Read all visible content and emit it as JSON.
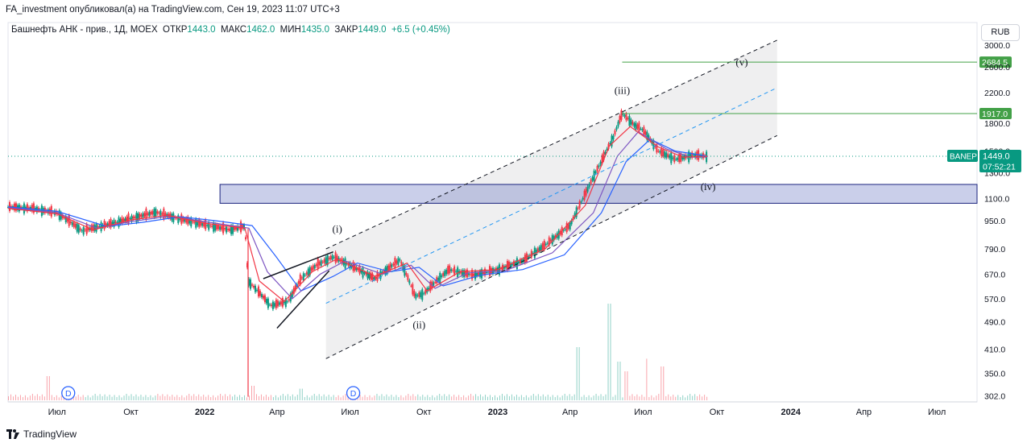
{
  "header": {
    "published": "FA_investment опубликовал(а) на TradingView.com, Сен 19, 2023 11:07 UTC+3"
  },
  "symbol_line": {
    "name": "Башнефть АНК - прив., 1Д, MOEX",
    "open_label": "ОТКР",
    "open": "1443.0",
    "high_label": "МАКС",
    "high": "1462.0",
    "low_label": "МИН",
    "low": "1435.0",
    "close_label": "ЗАКР",
    "close": "1449.0",
    "change": "+6.5 (+0.45%)"
  },
  "currency_button": "RUB",
  "footer": {
    "brand": "TradingView"
  },
  "colors": {
    "up": "#089981",
    "down": "#f23645",
    "ma_fast": "#f23645",
    "ma_mid": "#7e57c2",
    "ma_slow": "#2962ff",
    "channel": "#131722",
    "midline": "#2196f3",
    "level": "#43a047",
    "zone": "#3f51b5"
  },
  "chart_data": {
    "type": "candlestick",
    "symbol": "BANEP",
    "y_scale": "log",
    "ylim": [
      290,
      3300
    ],
    "x_range": [
      "2021-05-01",
      "2024-08-20"
    ],
    "y_ticks": [
      "3000.0",
      "2600.0",
      "2200.0",
      "1800.0",
      "1500.0",
      "1300.0",
      "1100.0",
      "950.0",
      "790.0",
      "670.0",
      "570.0",
      "490.0",
      "410.0",
      "350.0",
      "302.0"
    ],
    "x_ticks": [
      {
        "date": "2021-07-01",
        "label": "Июл"
      },
      {
        "date": "2021-10-01",
        "label": "Окт"
      },
      {
        "date": "2022-01-01",
        "label": "2022"
      },
      {
        "date": "2022-04-01",
        "label": "Апр"
      },
      {
        "date": "2022-07-01",
        "label": "Июл"
      },
      {
        "date": "2022-10-01",
        "label": "Окт"
      },
      {
        "date": "2023-01-01",
        "label": "2023"
      },
      {
        "date": "2023-04-01",
        "label": "Апр"
      },
      {
        "date": "2023-07-01",
        "label": "Июл"
      },
      {
        "date": "2023-10-01",
        "label": "Окт"
      },
      {
        "date": "2024-01-01",
        "label": "2024"
      },
      {
        "date": "2024-04-01",
        "label": "Апр"
      },
      {
        "date": "2024-07-01",
        "label": "Июл"
      }
    ],
    "price_path": [
      [
        "2021-05-01",
        1040
      ],
      [
        "2021-06-01",
        1030
      ],
      [
        "2021-07-01",
        1000
      ],
      [
        "2021-08-01",
        890
      ],
      [
        "2021-09-01",
        925
      ],
      [
        "2021-10-01",
        965
      ],
      [
        "2021-11-01",
        1005
      ],
      [
        "2021-12-01",
        960
      ],
      [
        "2022-01-01",
        925
      ],
      [
        "2022-02-01",
        895
      ],
      [
        "2022-02-20",
        915
      ],
      [
        "2022-02-24",
        640
      ],
      [
        "2022-03-24",
        545
      ],
      [
        "2022-04-15",
        560
      ],
      [
        "2022-05-01",
        650
      ],
      [
        "2022-05-20",
        710
      ],
      [
        "2022-06-10",
        750
      ],
      [
        "2022-07-01",
        710
      ],
      [
        "2022-08-01",
        650
      ],
      [
        "2022-09-01",
        735
      ],
      [
        "2022-09-20",
        580
      ],
      [
        "2022-10-01",
        590
      ],
      [
        "2022-11-01",
        690
      ],
      [
        "2022-12-01",
        665
      ],
      [
        "2023-01-01",
        690
      ],
      [
        "2023-02-01",
        730
      ],
      [
        "2023-03-01",
        810
      ],
      [
        "2023-04-01",
        920
      ],
      [
        "2023-04-20",
        1130
      ],
      [
        "2023-05-10",
        1400
      ],
      [
        "2023-05-25",
        1640
      ],
      [
        "2023-06-05",
        1917
      ],
      [
        "2023-06-20",
        1780
      ],
      [
        "2023-07-01",
        1720
      ],
      [
        "2023-07-20",
        1500
      ],
      [
        "2023-08-10",
        1420
      ],
      [
        "2023-09-01",
        1460
      ],
      [
        "2023-09-19",
        1449
      ]
    ],
    "ma_fast_path": [
      [
        "2021-05-01",
        1030
      ],
      [
        "2021-07-01",
        995
      ],
      [
        "2021-08-15",
        895
      ],
      [
        "2021-10-01",
        955
      ],
      [
        "2021-11-15",
        985
      ],
      [
        "2022-01-01",
        935
      ],
      [
        "2022-02-20",
        905
      ],
      [
        "2022-03-10",
        640
      ],
      [
        "2022-04-10",
        560
      ],
      [
        "2022-05-15",
        680
      ],
      [
        "2022-06-15",
        740
      ],
      [
        "2022-08-01",
        660
      ],
      [
        "2022-09-10",
        720
      ],
      [
        "2022-10-05",
        600
      ],
      [
        "2022-11-15",
        680
      ],
      [
        "2023-01-01",
        690
      ],
      [
        "2023-03-01",
        790
      ],
      [
        "2023-04-20",
        1050
      ],
      [
        "2023-05-20",
        1550
      ],
      [
        "2023-06-15",
        1760
      ],
      [
        "2023-07-20",
        1540
      ],
      [
        "2023-08-20",
        1440
      ],
      [
        "2023-09-19",
        1450
      ]
    ],
    "ma_mid_path": [
      [
        "2021-05-01",
        1035
      ],
      [
        "2021-07-01",
        1000
      ],
      [
        "2021-08-20",
        905
      ],
      [
        "2021-10-01",
        945
      ],
      [
        "2021-11-20",
        980
      ],
      [
        "2022-01-01",
        945
      ],
      [
        "2022-02-25",
        905
      ],
      [
        "2022-03-20",
        680
      ],
      [
        "2022-04-20",
        570
      ],
      [
        "2022-05-25",
        670
      ],
      [
        "2022-06-25",
        730
      ],
      [
        "2022-08-10",
        670
      ],
      [
        "2022-09-15",
        710
      ],
      [
        "2022-10-15",
        610
      ],
      [
        "2022-11-25",
        675
      ],
      [
        "2023-01-10",
        685
      ],
      [
        "2023-03-10",
        770
      ],
      [
        "2023-04-30",
        1000
      ],
      [
        "2023-05-30",
        1450
      ],
      [
        "2023-06-25",
        1700
      ],
      [
        "2023-07-30",
        1520
      ],
      [
        "2023-08-30",
        1440
      ],
      [
        "2023-09-19",
        1445
      ]
    ],
    "ma_slow_path": [
      [
        "2021-05-01",
        1040
      ],
      [
        "2021-07-01",
        1010
      ],
      [
        "2021-09-01",
        915
      ],
      [
        "2021-10-15",
        940
      ],
      [
        "2021-12-01",
        975
      ],
      [
        "2022-01-15",
        950
      ],
      [
        "2022-03-01",
        920
      ],
      [
        "2022-03-31",
        750
      ],
      [
        "2022-05-01",
        600
      ],
      [
        "2022-06-10",
        660
      ],
      [
        "2022-07-10",
        720
      ],
      [
        "2022-08-20",
        680
      ],
      [
        "2022-09-25",
        700
      ],
      [
        "2022-10-25",
        620
      ],
      [
        "2022-12-10",
        665
      ],
      [
        "2023-02-01",
        690
      ],
      [
        "2023-03-25",
        760
      ],
      [
        "2023-05-10",
        1000
      ],
      [
        "2023-06-10",
        1400
      ],
      [
        "2023-07-10",
        1620
      ],
      [
        "2023-08-10",
        1500
      ],
      [
        "2023-09-19",
        1450
      ]
    ],
    "channel": {
      "upper": [
        [
          "2022-06-01",
          790
        ],
        [
          "2023-12-15",
          3100
        ]
      ],
      "lower": [
        [
          "2022-06-01",
          385
        ],
        [
          "2023-12-15",
          1660
        ]
      ],
      "mid": [
        [
          "2022-06-01",
          553
        ],
        [
          "2023-12-15",
          2270
        ]
      ],
      "shade_end": "2023-12-15"
    },
    "wedge_lines": [
      [
        [
          "2022-03-15",
          650
        ],
        [
          "2022-06-10",
          775
        ]
      ],
      [
        [
          "2022-04-01",
          470
        ],
        [
          "2022-06-05",
          685
        ]
      ]
    ],
    "levels": [
      {
        "value": 2684.5,
        "label": "2684.5",
        "from": "2023-06-05"
      },
      {
        "value": 1917.0,
        "label": "1917.0",
        "from": "2023-06-05"
      }
    ],
    "support_zone": {
      "from": "2022-01-20",
      "y": [
        1065,
        1205
      ]
    },
    "current": {
      "symbol": "BANEP",
      "price": "1449.0",
      "timer": "07:52:21",
      "value": 1449
    },
    "wave_labels": [
      {
        "text": "(i)",
        "date": "2022-06-15",
        "value": 880
      },
      {
        "text": "(ii)",
        "date": "2022-09-25",
        "value": 470
      },
      {
        "text": "(iii)",
        "date": "2023-06-05",
        "value": 2180
      },
      {
        "text": "(iv)",
        "date": "2023-09-20",
        "value": 1160
      },
      {
        "text": "(v)",
        "date": "2023-11-01",
        "value": 2620
      }
    ],
    "dividend_markers": [
      {
        "label": "D",
        "date": "2021-07-15"
      },
      {
        "label": "D",
        "date": "2022-07-05"
      }
    ],
    "volume_spikes": [
      {
        "date": "2021-06-20",
        "relative": 0.25
      },
      {
        "date": "2022-03-01",
        "relative": 0.15
      },
      {
        "date": "2022-05-01",
        "relative": 0.12
      },
      {
        "date": "2023-04-10",
        "relative": 0.55
      },
      {
        "date": "2023-05-20",
        "relative": 1.0
      },
      {
        "date": "2023-06-01",
        "relative": 0.4
      },
      {
        "date": "2023-06-10",
        "relative": 0.3
      },
      {
        "date": "2023-07-05",
        "relative": 0.43
      },
      {
        "date": "2023-07-25",
        "relative": 0.35
      }
    ]
  }
}
